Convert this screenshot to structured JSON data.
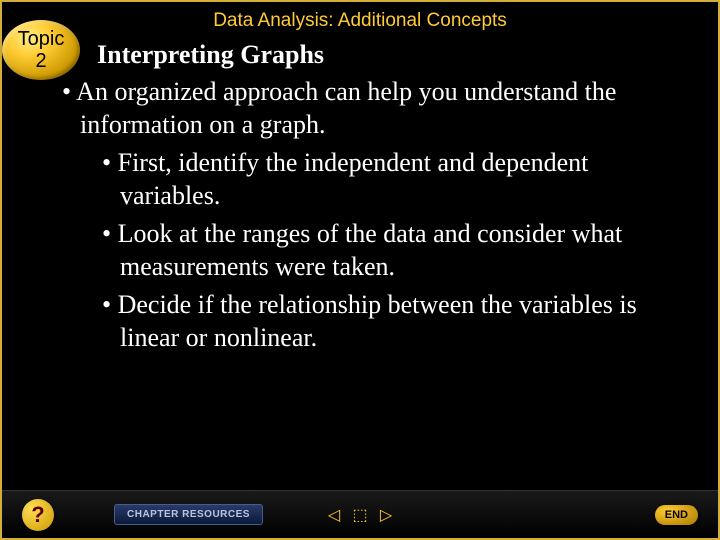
{
  "header": {
    "title": "Data Analysis: Additional Concepts"
  },
  "topic_badge": {
    "line1": "Topic",
    "line2": "2"
  },
  "content": {
    "subtitle": "Interpreting Graphs",
    "bullets": [
      {
        "level": "main",
        "text": "• An organized approach can help you understand the information on a graph."
      },
      {
        "level": "sub",
        "text": "• First, identify the independent and dependent variables."
      },
      {
        "level": "sub",
        "text": "• Look at the ranges of the data and consider what measurements were taken."
      },
      {
        "level": "sub",
        "text": "• Decide if the relationship between the variables is linear or nonlinear."
      }
    ]
  },
  "footer": {
    "help": "?",
    "chapter": "CHAPTER RESOURCES",
    "nav_prev": "◁",
    "nav_home": "⬚",
    "nav_next": "▷",
    "end": "END"
  },
  "colors": {
    "background": "#000000",
    "accent_gold": "#ffcc33",
    "border_gold": "#d4af37",
    "text_white": "#ffffff",
    "chapter_bg": "#1a2a5a"
  }
}
